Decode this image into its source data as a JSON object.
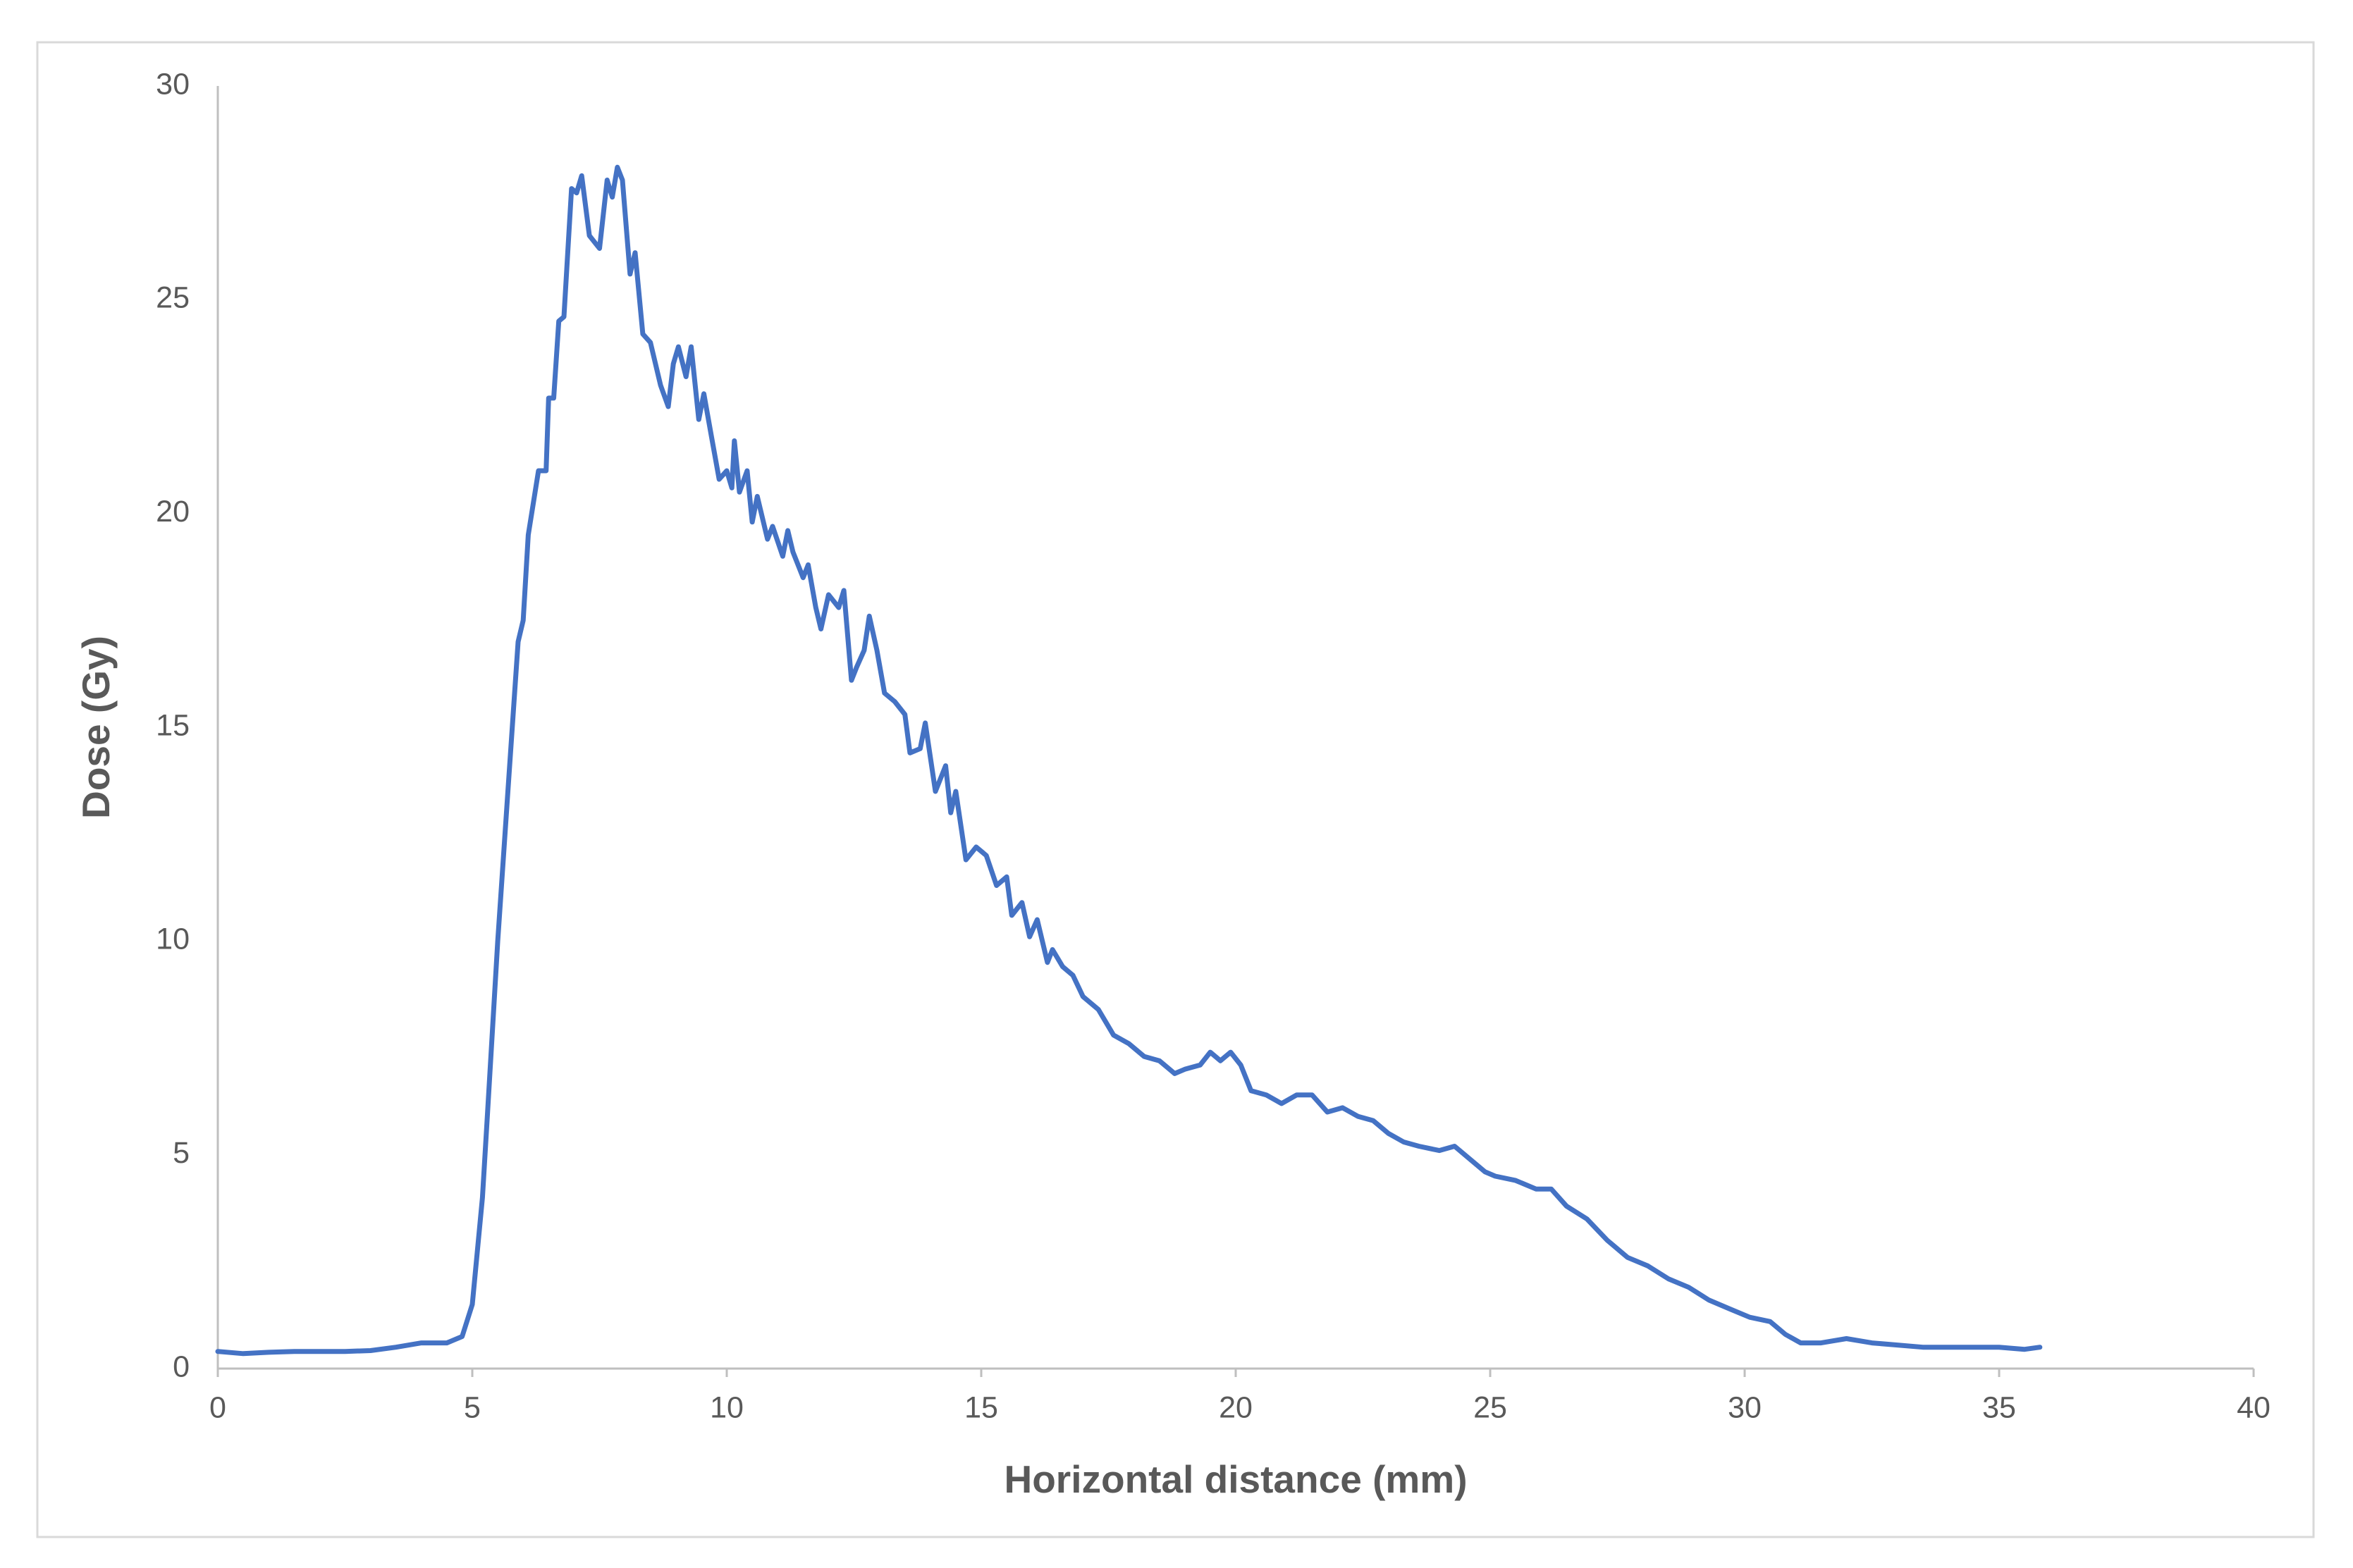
{
  "chart_data": {
    "type": "line",
    "x_label": "Horizontal distance (mm)",
    "y_label": "Dose (Gy)",
    "color": "#4472c4",
    "xlim": [
      0,
      40
    ],
    "xticks": [
      0,
      5,
      10,
      15,
      20,
      25,
      30,
      35,
      40
    ],
    "ylim": [
      0,
      30
    ],
    "yticks": [
      0,
      5,
      10,
      15,
      20,
      25,
      30
    ],
    "grid": false,
    "x": [
      0,
      0.5,
      1,
      1.5,
      2,
      2.5,
      3,
      3.5,
      4,
      4.5,
      4.8,
      5.0,
      5.2,
      5.3,
      5.5,
      5.7,
      5.9,
      6.0,
      6.1,
      6.3,
      6.45,
      6.5,
      6.6,
      6.7,
      6.8,
      6.95,
      7.05,
      7.15,
      7.3,
      7.5,
      7.65,
      7.75,
      7.85,
      7.95,
      8.1,
      8.2,
      8.35,
      8.5,
      8.7,
      8.85,
      8.95,
      9.05,
      9.2,
      9.3,
      9.45,
      9.55,
      9.7,
      9.85,
      10.0,
      10.1,
      10.15,
      10.25,
      10.4,
      10.5,
      10.6,
      10.8,
      10.9,
      11.1,
      11.2,
      11.3,
      11.5,
      11.6,
      11.75,
      11.85,
      12.0,
      12.2,
      12.3,
      12.45,
      12.55,
      12.7,
      12.8,
      12.95,
      13.1,
      13.3,
      13.5,
      13.6,
      13.8,
      13.9,
      14.1,
      14.3,
      14.4,
      14.5,
      14.7,
      14.9,
      15.1,
      15.3,
      15.5,
      15.6,
      15.8,
      15.95,
      16.1,
      16.3,
      16.4,
      16.6,
      16.8,
      17.0,
      17.3,
      17.6,
      17.9,
      18.2,
      18.5,
      18.8,
      19.0,
      19.3,
      19.5,
      19.7,
      19.9,
      20.1,
      20.3,
      20.6,
      20.9,
      21.2,
      21.5,
      21.8,
      22.1,
      22.4,
      22.7,
      23.0,
      23.3,
      23.6,
      24.0,
      24.3,
      24.6,
      24.9,
      25.1,
      25.5,
      25.9,
      26.2,
      26.5,
      26.9,
      27.3,
      27.7,
      28.1,
      28.5,
      28.9,
      29.3,
      29.7,
      30.1,
      30.5,
      30.8,
      31.1,
      31.5,
      32.0,
      32.5,
      33.0,
      33.5,
      34.0,
      34.5,
      35.0,
      35.5,
      35.8
    ],
    "values": [
      0.4,
      0.35,
      0.38,
      0.4,
      0.4,
      0.4,
      0.42,
      0.5,
      0.6,
      0.6,
      0.75,
      1.5,
      4,
      6,
      10,
      13.5,
      17,
      17.5,
      19.5,
      21,
      21,
      22.7,
      22.7,
      24.5,
      24.6,
      27.6,
      27.5,
      27.9,
      26.5,
      26.2,
      27.8,
      27.4,
      28.1,
      27.8,
      25.6,
      26.1,
      24.2,
      24,
      23,
      22.5,
      23.5,
      23.9,
      23.2,
      23.9,
      22.2,
      22.8,
      21.8,
      20.8,
      21,
      20.6,
      21.7,
      20.5,
      21,
      19.8,
      20.4,
      19.4,
      19.7,
      19,
      19.6,
      19.1,
      18.5,
      18.8,
      17.8,
      17.3,
      18.1,
      17.8,
      18.2,
      16.1,
      16.4,
      16.8,
      17.6,
      16.8,
      15.8,
      15.6,
      15.3,
      14.4,
      14.5,
      15.1,
      13.5,
      14.1,
      13,
      13.5,
      11.9,
      12.2,
      12,
      11.3,
      11.5,
      10.6,
      10.9,
      10.1,
      10.5,
      9.5,
      9.8,
      9.4,
      9.2,
      8.7,
      8.4,
      7.8,
      7.6,
      7.3,
      7.2,
      6.9,
      7.0,
      7.1,
      7.4,
      7.2,
      7.4,
      7.1,
      6.5,
      6.4,
      6.2,
      6.4,
      6.4,
      6.0,
      6.1,
      5.9,
      5.8,
      5.5,
      5.3,
      5.2,
      5.1,
      5.2,
      4.9,
      4.6,
      4.5,
      4.4,
      4.2,
      4.2,
      3.8,
      3.5,
      3.0,
      2.6,
      2.4,
      2.1,
      1.9,
      1.6,
      1.4,
      1.2,
      1.1,
      0.8,
      0.6,
      0.6,
      0.7,
      0.6,
      0.55,
      0.5,
      0.5,
      0.5,
      0.5,
      0.45,
      0.5
    ]
  }
}
